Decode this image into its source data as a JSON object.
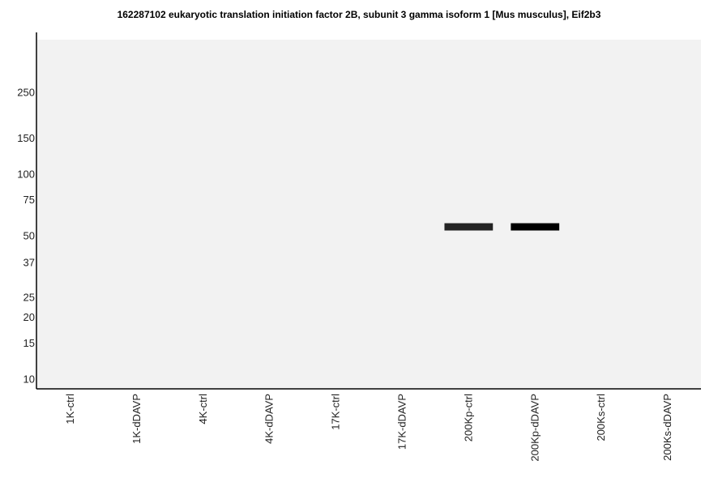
{
  "chart_data": {
    "type": "bar",
    "title": "162287102 eukaryotic translation initiation factor 2B, subunit 3 gamma isoform 1 [Mus musculus], Eif2b3",
    "xlabel": "",
    "ylabel": "",
    "y_scale": "log",
    "y_ticks": [
      250,
      150,
      100,
      75,
      50,
      37,
      25,
      20,
      15,
      10
    ],
    "ylim": [
      9,
      450
    ],
    "categories": [
      "1K-ctrl",
      "1K-dDAVP",
      "4K-ctrl",
      "4K-dDAVP",
      "17K-ctrl",
      "17K-dDAVP",
      "200Kp-ctrl",
      "200Kp-dDAVP",
      "200Ks-ctrl",
      "200Ks-dDAVP"
    ],
    "bands": [
      {
        "lane": "200Kp-ctrl",
        "mw": 55,
        "intensity": 0.85
      },
      {
        "lane": "200Kp-dDAVP",
        "mw": 55,
        "intensity": 1.0
      }
    ],
    "grid": false,
    "legend": "none"
  },
  "colors": {
    "plot_background": "#f2f2f2",
    "band": "#000000",
    "axis": "#000000"
  }
}
